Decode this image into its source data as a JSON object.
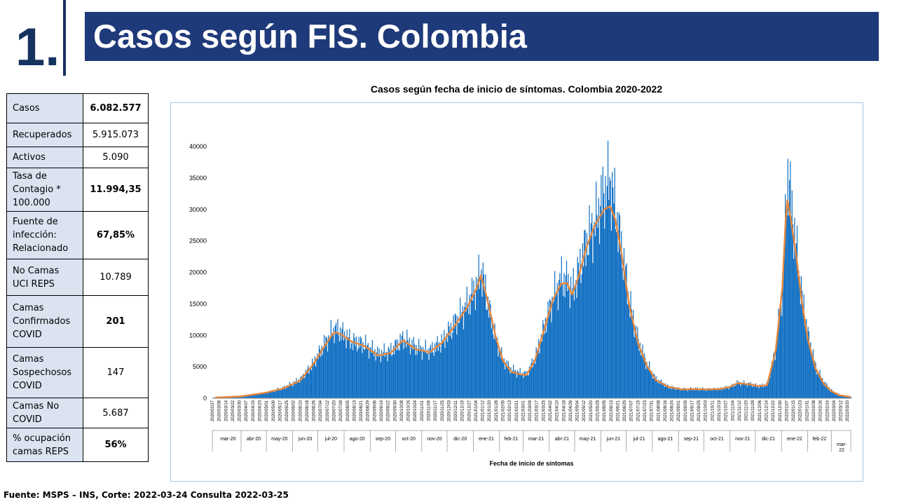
{
  "slide": {
    "number": "1.",
    "title": "Casos según FIS. Colombia"
  },
  "stats": [
    {
      "label": "Casos",
      "value": "6.082.577",
      "bold": true
    },
    {
      "label": "Recuperados",
      "value": "5.915.073",
      "bold": false
    },
    {
      "label": "Activos",
      "value": "5.090",
      "bold": false
    },
    {
      "label": "Tasa de Contagio * 100.000",
      "value": "11.994,35",
      "bold": true
    },
    {
      "label": "Fuente de infección: Relacionado",
      "value": "67,85%",
      "bold": true
    },
    {
      "label": "No Camas UCI REPS",
      "value": "10.789",
      "bold": false
    },
    {
      "label": "Camas Confirmados COVID",
      "value": "201",
      "bold": true
    },
    {
      "label": "Camas Sospechosos COVID",
      "value": "147",
      "bold": false
    },
    {
      "label": "Camas No COVID",
      "value": "5.687",
      "bold": false
    },
    {
      "label": "% ocupación camas REPS",
      "value": "56%",
      "bold": true
    }
  ],
  "footer": "Fuente: MSPS – INS, Corte: 2022-03-24 Consulta 2022-03-25",
  "colors": {
    "bars": "#0f6ec2",
    "line": "#e8873b",
    "title_band": "#1f3a7a",
    "label_cells": "#dbe3f1"
  },
  "chart_data": {
    "type": "bar",
    "title": "Casos según fecha de inicio de síntomas. Colombia 2020-2022",
    "xlabel": "Fecha de inicio de síntomas",
    "ylabel": "",
    "ylim": [
      0,
      40000
    ],
    "yticks": [
      0,
      5000,
      10000,
      15000,
      20000,
      25000,
      30000,
      35000,
      40000
    ],
    "grid": false,
    "legend": "none",
    "date_range": [
      "2020-02-27",
      "2022-03-24"
    ],
    "tick_dates": [
      "2020/02/27",
      "2020/03/06",
      "2020/03/14",
      "2020/03/22",
      "2020/03/30",
      "2020/04/07",
      "2020/04/15",
      "2020/04/23",
      "2020/05/01",
      "2020/05/09",
      "2020/05/17",
      "2020/05/25",
      "2020/06/02",
      "2020/06/10",
      "2020/06/18",
      "2020/06/26",
      "2020/07/04",
      "2020/07/12",
      "2020/07/20",
      "2020/07/28",
      "2020/08/05",
      "2020/08/13",
      "2020/08/21",
      "2020/08/29",
      "2020/09/06",
      "2020/09/14",
      "2020/09/22",
      "2020/09/30",
      "2020/10/08",
      "2020/10/16",
      "2020/10/24",
      "2020/11/01",
      "2020/11/09",
      "2020/11/17",
      "2020/11/25",
      "2020/12/03",
      "2020/12/11",
      "2020/12/19",
      "2020/12/27",
      "2021/01/04",
      "2021/01/12",
      "2021/01/20",
      "2021/01/28",
      "2021/02/05",
      "2021/02/13",
      "2021/02/21",
      "2021/03/01",
      "2021/03/09",
      "2021/03/17",
      "2021/03/25",
      "2021/04/02",
      "2021/04/10",
      "2021/04/18",
      "2021/04/26",
      "2021/05/04",
      "2021/05/12",
      "2021/05/20",
      "2021/05/28",
      "2021/06/05",
      "2021/06/13",
      "2021/06/21",
      "2021/06/29",
      "2021/07/07",
      "2021/07/15",
      "2021/07/23",
      "2021/07/31",
      "2021/08/08",
      "2021/08/16",
      "2021/08/24",
      "2021/09/01",
      "2021/09/09",
      "2021/09/17",
      "2021/09/25",
      "2021/10/03",
      "2021/10/11",
      "2021/10/19",
      "2021/10/27",
      "2021/11/04",
      "2021/11/12",
      "2021/11/20",
      "2021/11/28",
      "2021/12/06",
      "2021/12/14",
      "2021/12/22",
      "2021/12/30",
      "2022/01/07",
      "2022/01/15",
      "2022/01/23",
      "2022/01/31",
      "2022/02/08",
      "2022/02/16",
      "2022/02/24",
      "2022/03/04",
      "2022/03/12",
      "2022/03/20"
    ],
    "months": [
      "mar-20",
      "abr-20",
      "may-20",
      "jun-20",
      "jul-20",
      "ago-20",
      "sep-20",
      "oct-20",
      "nov-20",
      "dic-20",
      "ene-21",
      "feb-21",
      "mar-21",
      "abr-21",
      "may-21",
      "jun-21",
      "jul-21",
      "ago-21",
      "sep-21",
      "oct-21",
      "nov-21",
      "dic-21",
      "ene-22",
      "feb-22",
      "mar-22"
    ],
    "series": [
      {
        "kind": "bars",
        "x": [
          "2020-03-01",
          "2020-04-01",
          "2020-05-01",
          "2020-05-20",
          "2020-06-10",
          "2020-06-25",
          "2020-07-10",
          "2020-07-20",
          "2020-07-28",
          "2020-08-10",
          "2020-08-25",
          "2020-09-10",
          "2020-09-25",
          "2020-10-10",
          "2020-10-25",
          "2020-11-10",
          "2020-11-25",
          "2020-12-10",
          "2020-12-25",
          "2021-01-05",
          "2021-01-10",
          "2021-01-18",
          "2021-01-28",
          "2021-02-05",
          "2021-02-15",
          "2021-02-25",
          "2021-03-05",
          "2021-03-15",
          "2021-03-25",
          "2021-04-05",
          "2021-04-15",
          "2021-04-22",
          "2021-04-28",
          "2021-05-05",
          "2021-05-15",
          "2021-05-25",
          "2021-06-05",
          "2021-06-12",
          "2021-06-18",
          "2021-06-25",
          "2021-07-05",
          "2021-07-15",
          "2021-07-25",
          "2021-08-05",
          "2021-08-20",
          "2021-09-05",
          "2021-09-20",
          "2021-10-05",
          "2021-10-20",
          "2021-11-01",
          "2021-11-10",
          "2021-11-25",
          "2021-12-05",
          "2021-12-15",
          "2021-12-25",
          "2022-01-02",
          "2022-01-06",
          "2022-01-08",
          "2022-01-12",
          "2022-01-18",
          "2022-01-25",
          "2022-02-01",
          "2022-02-10",
          "2022-02-20",
          "2022-03-01",
          "2022-03-10",
          "2022-03-24"
        ],
        "values": [
          80,
          200,
          900,
          1600,
          3000,
          5500,
          9000,
          11000,
          10500,
          9000,
          8500,
          7000,
          7500,
          9500,
          8000,
          7500,
          9000,
          12000,
          15000,
          18000,
          20500,
          15000,
          9000,
          6000,
          4500,
          4000,
          3800,
          6500,
          11000,
          16000,
          19000,
          18500,
          17000,
          20000,
          25000,
          28000,
          33000,
          34500,
          30000,
          24000,
          15000,
          9000,
          5500,
          3000,
          1800,
          1400,
          1500,
          1400,
          1500,
          1800,
          2500,
          2200,
          1900,
          2200,
          8000,
          18000,
          30000,
          36000,
          31000,
          24000,
          16000,
          10000,
          5000,
          2500,
          1200,
          600,
          200
        ]
      },
      {
        "kind": "line",
        "x": [
          "2020-03-01",
          "2020-04-01",
          "2020-05-01",
          "2020-05-20",
          "2020-06-10",
          "2020-06-25",
          "2020-07-10",
          "2020-07-20",
          "2020-07-28",
          "2020-08-10",
          "2020-08-25",
          "2020-09-10",
          "2020-09-25",
          "2020-10-10",
          "2020-10-25",
          "2020-11-10",
          "2020-11-25",
          "2020-12-10",
          "2020-12-25",
          "2021-01-05",
          "2021-01-10",
          "2021-01-18",
          "2021-01-28",
          "2021-02-05",
          "2021-02-15",
          "2021-02-25",
          "2021-03-05",
          "2021-03-15",
          "2021-03-25",
          "2021-04-05",
          "2021-04-15",
          "2021-04-22",
          "2021-04-28",
          "2021-05-05",
          "2021-05-15",
          "2021-05-25",
          "2021-06-05",
          "2021-06-12",
          "2021-06-18",
          "2021-06-25",
          "2021-07-05",
          "2021-07-15",
          "2021-07-25",
          "2021-08-05",
          "2021-08-20",
          "2021-09-05",
          "2021-09-20",
          "2021-10-05",
          "2021-10-20",
          "2021-11-01",
          "2021-11-10",
          "2021-11-25",
          "2021-12-05",
          "2021-12-15",
          "2021-12-25",
          "2022-01-02",
          "2022-01-06",
          "2022-01-08",
          "2022-01-12",
          "2022-01-18",
          "2022-01-25",
          "2022-02-01",
          "2022-02-10",
          "2022-02-20",
          "2022-03-01",
          "2022-03-10",
          "2022-03-24"
        ],
        "values": [
          100,
          300,
          900,
          1500,
          2800,
          5300,
          8500,
          10500,
          10200,
          9000,
          8300,
          6800,
          7200,
          9200,
          7800,
          7300,
          8800,
          11500,
          14500,
          17500,
          19500,
          15500,
          9500,
          6000,
          4200,
          3800,
          3700,
          6000,
          10500,
          15500,
          18200,
          18300,
          16500,
          19000,
          24000,
          27500,
          30000,
          30500,
          28500,
          23500,
          14500,
          8800,
          5300,
          2900,
          1800,
          1400,
          1450,
          1400,
          1450,
          1800,
          2400,
          2200,
          1900,
          2100,
          7500,
          17500,
          28500,
          31500,
          28500,
          23000,
          15500,
          9500,
          4800,
          2300,
          1100,
          500,
          200
        ]
      }
    ]
  }
}
